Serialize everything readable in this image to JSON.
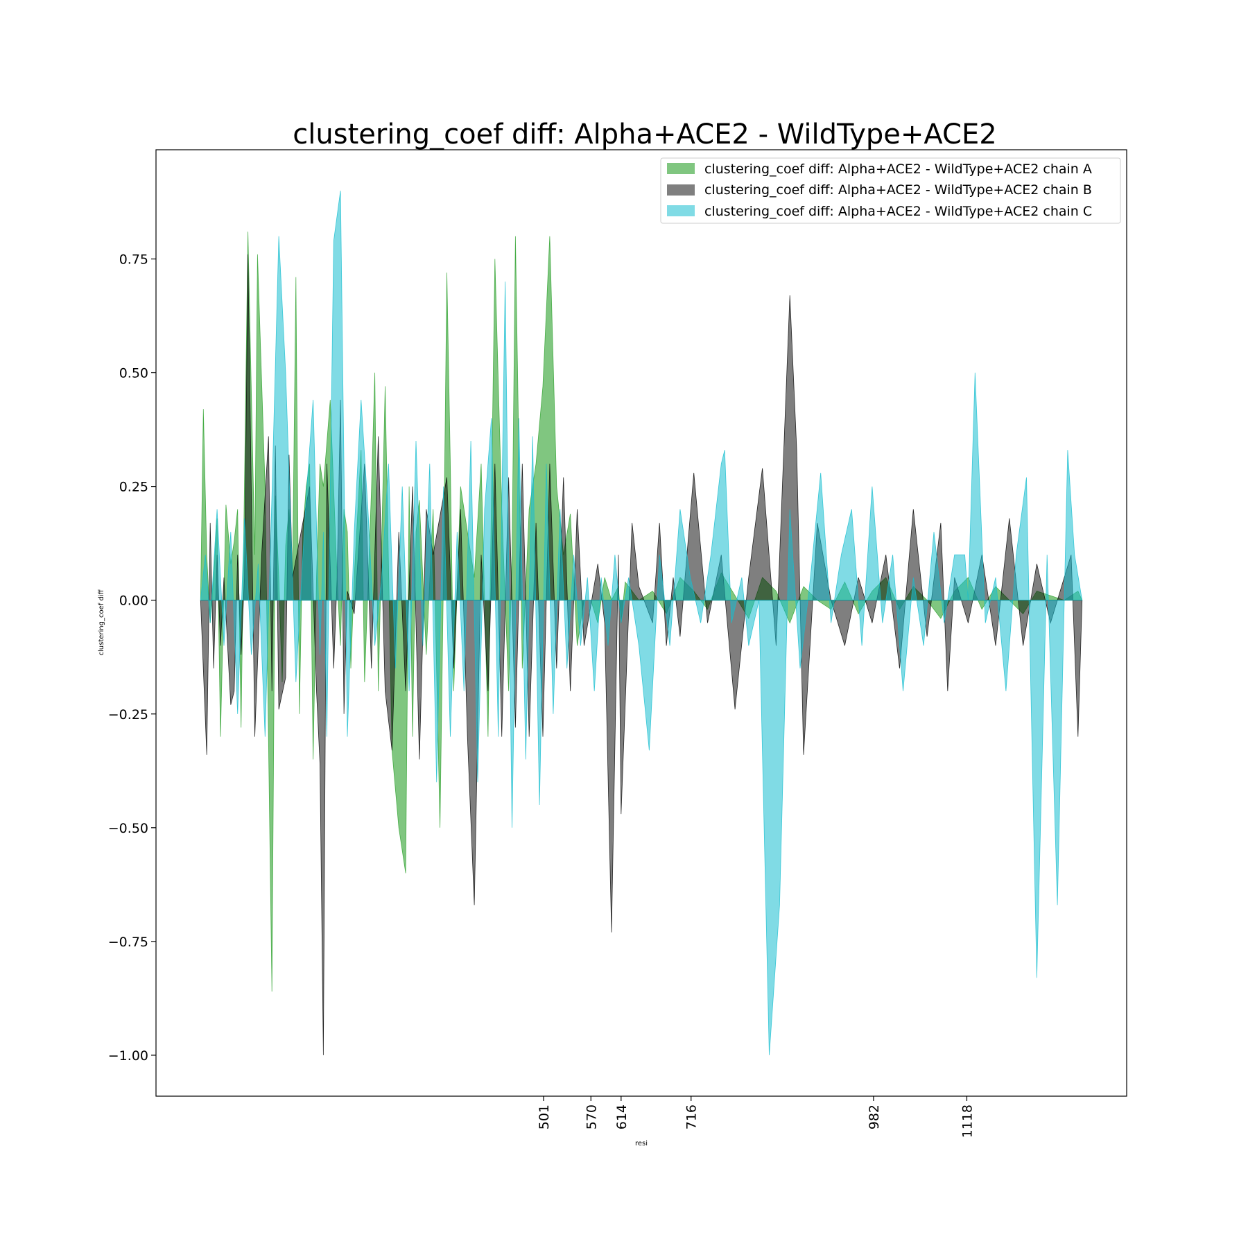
{
  "chart_data": {
    "type": "area",
    "title": "clustering_coef diff: Alpha+ACE2 - WildType+ACE2",
    "xlabel": "resi",
    "ylabel": "clustering_coef diff",
    "x_range": [
      1,
      1286
    ],
    "xlim": [
      -64,
      1351
    ],
    "ylim": [
      -1.09,
      0.99
    ],
    "x_ticks": [
      501,
      570,
      614,
      716,
      982,
      1118
    ],
    "y_ticks": [
      0.75,
      0.5,
      0.25,
      0.0,
      -0.25,
      -0.5,
      -0.75,
      -1.0
    ],
    "y_tick_labels": [
      "0.75",
      "0.50",
      "0.25",
      "0.00",
      "−0.25",
      "−0.50",
      "−0.75",
      "−1.00"
    ],
    "grid": false,
    "legend_position": "top-right",
    "colors": {
      "A": "#2ca02c",
      "B": "#000000",
      "C": "#17becf"
    },
    "series": [
      {
        "name": "clustering_coef diff: Alpha+ACE2 - WildType+ACE2 chain A",
        "color": "#2ca02c",
        "x": [
          1,
          5,
          10,
          15,
          20,
          25,
          30,
          38,
          45,
          50,
          55,
          60,
          70,
          80,
          84,
          95,
          105,
          110,
          115,
          120,
          125,
          130,
          135,
          140,
          145,
          150,
          155,
          160,
          165,
          170,
          175,
          180,
          190,
          200,
          205,
          210,
          215,
          220,
          225,
          235,
          240,
          250,
          255,
          260,
          270,
          280,
          290,
          300,
          305,
          310,
          315,
          320,
          330,
          340,
          350,
          355,
          360,
          365,
          370,
          380,
          390,
          400,
          410,
          420,
          430,
          440,
          450,
          455,
          460,
          470,
          480,
          490,
          500,
          510,
          520,
          530,
          540,
          550,
          560,
          570,
          580,
          590,
          600,
          610,
          614,
          620,
          640,
          660,
          680,
          700,
          720,
          740,
          760,
          780,
          800,
          820,
          840,
          860,
          880,
          900,
          920,
          940,
          960,
          980,
          1000,
          1020,
          1040,
          1060,
          1080,
          1100,
          1120,
          1140,
          1160,
          1180,
          1200,
          1220,
          1240,
          1260,
          1280,
          1286
        ],
        "y": [
          0,
          0.42,
          0.1,
          -0.05,
          0.05,
          0.18,
          -0.3,
          0.21,
          0.08,
          0.13,
          0.2,
          -0.28,
          0.81,
          0.1,
          0.76,
          0.25,
          -0.86,
          0.23,
          0.05,
          -0.18,
          0.12,
          0.2,
          0.05,
          0.71,
          -0.25,
          0.15,
          0.25,
          0.3,
          -0.35,
          0.05,
          0.3,
          0.25,
          0.44,
          0.05,
          -0.1,
          0.2,
          0.15,
          -0.15,
          0.05,
          0.33,
          -0.18,
          0.24,
          0.5,
          -0.2,
          0.47,
          -0.33,
          -0.5,
          -0.6,
          0.25,
          -0.3,
          0.15,
          0.22,
          -0.12,
          0.2,
          -0.5,
          0.05,
          0.72,
          0.3,
          -0.2,
          0.25,
          0.15,
          0.05,
          0.3,
          -0.3,
          0.75,
          0.2,
          -0.2,
          0.1,
          0.8,
          -0.15,
          0.2,
          0.3,
          0.47,
          0.8,
          0.25,
          0.1,
          0.19,
          -0.1,
          0.0,
          0.0,
          -0.05,
          0.05,
          0.0,
          0.03,
          -0.05,
          0.04,
          0.0,
          0.02,
          -0.03,
          0.05,
          0.02,
          -0.02,
          0.06,
          0.01,
          -0.04,
          0.05,
          0.02,
          -0.05,
          0.03,
          0.0,
          -0.02,
          0.04,
          -0.03,
          0.02,
          0.05,
          -0.02,
          0.03,
          0.0,
          -0.04,
          0.02,
          0.05,
          -0.02,
          0.03,
          0.0,
          -0.03,
          0.02,
          0.01,
          0.0,
          0.02,
          0.0
        ]
      },
      {
        "name": "clustering_coef diff: Alpha+ACE2 - WildType+ACE2 chain B",
        "color": "#000000",
        "x": [
          1,
          10,
          15,
          20,
          25,
          30,
          35,
          45,
          50,
          55,
          60,
          65,
          70,
          80,
          90,
          100,
          105,
          110,
          115,
          125,
          130,
          135,
          160,
          170,
          175,
          180,
          185,
          195,
          200,
          205,
          210,
          215,
          225,
          240,
          250,
          260,
          270,
          280,
          290,
          300,
          310,
          320,
          330,
          340,
          360,
          370,
          380,
          390,
          400,
          410,
          420,
          430,
          440,
          450,
          460,
          470,
          480,
          490,
          500,
          510,
          520,
          530,
          540,
          550,
          560,
          580,
          590,
          600,
          610,
          614,
          630,
          640,
          660,
          670,
          680,
          690,
          700,
          720,
          740,
          760,
          780,
          800,
          820,
          840,
          860,
          870,
          880,
          900,
          920,
          940,
          960,
          980,
          1000,
          1020,
          1040,
          1060,
          1080,
          1090,
          1100,
          1120,
          1140,
          1160,
          1180,
          1200,
          1220,
          1240,
          1260,
          1270,
          1280,
          1286
        ],
        "y": [
          0,
          -0.34,
          0.17,
          -0.15,
          0.1,
          -0.1,
          0.05,
          -0.23,
          -0.2,
          0.1,
          -0.12,
          0.05,
          0.76,
          -0.3,
          0.1,
          0.36,
          -0.2,
          0.34,
          -0.24,
          -0.17,
          0.32,
          0.05,
          0.25,
          -0.2,
          -0.36,
          -1.0,
          0.3,
          -0.15,
          0.05,
          0.44,
          -0.25,
          0.02,
          -0.03,
          0.3,
          -0.15,
          0.36,
          -0.2,
          -0.33,
          0.15,
          -0.2,
          0.25,
          -0.35,
          0.2,
          0.1,
          0.27,
          -0.15,
          0.2,
          -0.3,
          -0.67,
          0.1,
          -0.2,
          0.3,
          -0.3,
          0.27,
          -0.28,
          0.3,
          -0.3,
          0.17,
          -0.3,
          0.3,
          -0.15,
          0.27,
          -0.2,
          0.2,
          -0.1,
          0.08,
          -0.05,
          -0.73,
          0.1,
          -0.47,
          0.17,
          0.03,
          -0.05,
          0.17,
          -0.1,
          0.05,
          -0.08,
          0.28,
          -0.05,
          0.1,
          -0.24,
          0.05,
          0.29,
          -0.1,
          0.67,
          0.33,
          -0.34,
          0.17,
          0.0,
          -0.1,
          0.05,
          -0.05,
          0.1,
          -0.15,
          0.2,
          -0.08,
          0.17,
          -0.2,
          0.05,
          -0.05,
          0.1,
          -0.1,
          0.18,
          -0.1,
          0.08,
          -0.05,
          0.05,
          0.1,
          -0.3,
          0.0
        ]
      },
      {
        "name": "clustering_coef diff: Alpha+ACE2 - WildType+ACE2 chain C",
        "color": "#17becf",
        "x": [
          1,
          8,
          15,
          25,
          35,
          45,
          55,
          65,
          75,
          85,
          95,
          105,
          115,
          125,
          135,
          140,
          155,
          165,
          175,
          180,
          185,
          195,
          205,
          215,
          225,
          235,
          245,
          255,
          265,
          275,
          285,
          295,
          305,
          315,
          325,
          335,
          345,
          355,
          365,
          375,
          385,
          395,
          405,
          415,
          425,
          435,
          445,
          455,
          465,
          475,
          485,
          495,
          505,
          515,
          525,
          535,
          545,
          555,
          565,
          575,
          585,
          595,
          605,
          614,
          625,
          640,
          655,
          670,
          685,
          700,
          715,
          730,
          745,
          760,
          765,
          775,
          790,
          800,
          815,
          830,
          845,
          860,
          875,
          890,
          905,
          920,
          935,
          950,
          965,
          980,
          995,
          1010,
          1025,
          1040,
          1055,
          1070,
          1085,
          1100,
          1115,
          1120,
          1130,
          1145,
          1160,
          1175,
          1190,
          1205,
          1220,
          1235,
          1250,
          1265,
          1275,
          1286
        ],
        "y": [
          0,
          0.1,
          -0.05,
          0.2,
          -0.1,
          0.15,
          -0.25,
          0.18,
          -0.12,
          0.08,
          -0.3,
          0.23,
          0.8,
          0.5,
          0.05,
          -0.18,
          0.23,
          0.44,
          -0.12,
          0.15,
          -0.3,
          0.79,
          0.9,
          -0.3,
          0.15,
          0.44,
          0.2,
          -0.1,
          0.05,
          0.3,
          -0.15,
          0.25,
          -0.2,
          0.35,
          -0.1,
          0.3,
          -0.4,
          0.25,
          -0.3,
          0.15,
          -0.2,
          0.35,
          -0.4,
          0.2,
          0.4,
          -0.3,
          0.7,
          -0.5,
          0.4,
          -0.35,
          0.36,
          -0.45,
          0.3,
          -0.25,
          0.2,
          -0.15,
          0.1,
          -0.1,
          0.05,
          -0.2,
          0.05,
          -0.1,
          0.1,
          -0.05,
          0.05,
          -0.1,
          -0.33,
          0.1,
          -0.1,
          0.2,
          0.05,
          -0.05,
          0.1,
          0.3,
          0.33,
          -0.05,
          0.05,
          -0.1,
          0.0,
          -1.0,
          -0.67,
          0.2,
          -0.15,
          0.05,
          0.28,
          -0.05,
          0.1,
          0.2,
          -0.1,
          0.25,
          -0.05,
          0.1,
          -0.2,
          0.05,
          -0.1,
          0.15,
          -0.05,
          0.1,
          0.1,
          0.0,
          0.5,
          -0.05,
          0.05,
          -0.2,
          0.1,
          0.27,
          -0.83,
          0.1,
          -0.67,
          0.33,
          0.1,
          0.0
        ]
      }
    ]
  }
}
